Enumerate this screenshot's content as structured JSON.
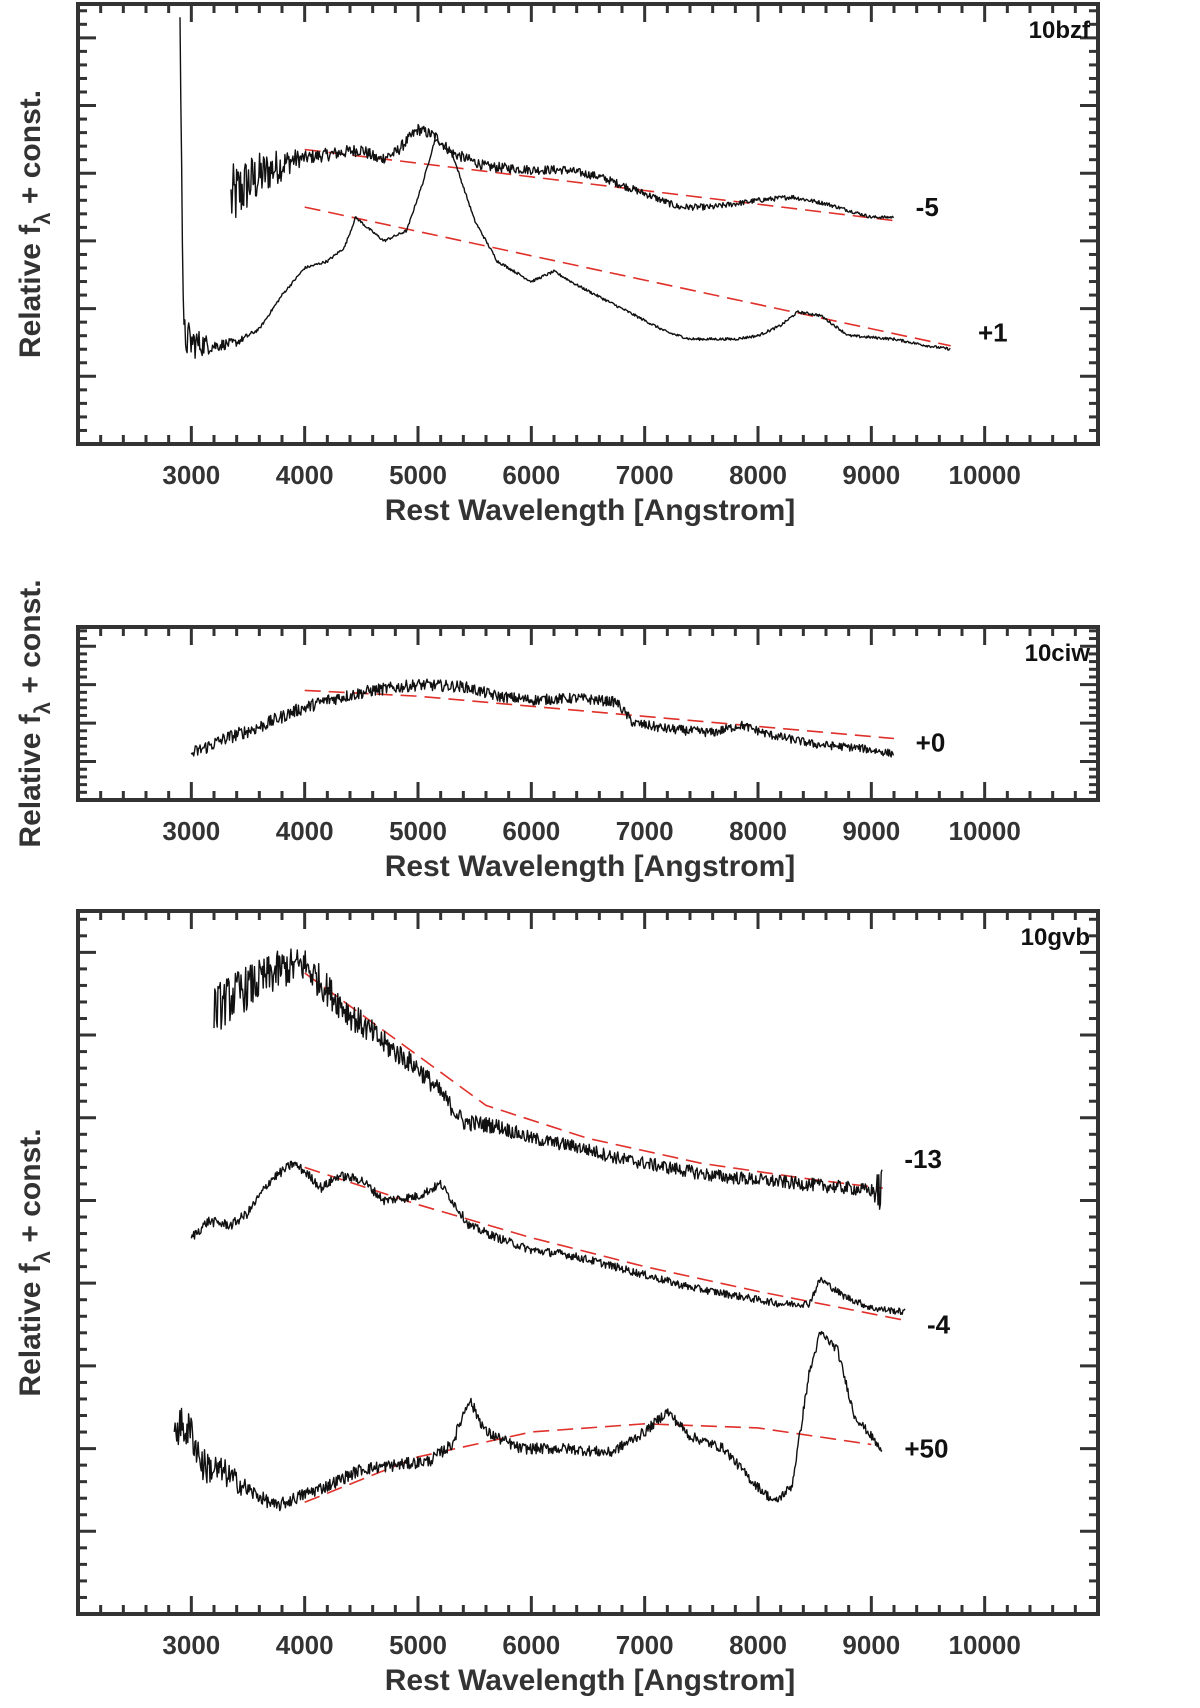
{
  "chart_data": [
    {
      "type": "line",
      "name": "10bzf",
      "title": "10bzf",
      "xlabel": "Rest Wavelength [Angstrom]",
      "ylabel": "Relative f_λ + const.",
      "ylabel_main": "Relative f",
      "ylabel_sub": "λ",
      "ylabel_tail": " + const.",
      "xlim": [
        2000,
        11000
      ],
      "xticks": [
        3000,
        4000,
        5000,
        6000,
        7000,
        8000,
        9000,
        10000
      ],
      "xtick_labels": [
        "3000",
        "4000",
        "5000",
        "6000",
        "7000",
        "8000",
        "9000",
        "10000"
      ],
      "ylim": [
        0,
        6.5
      ],
      "ymajor": [
        1,
        2,
        3,
        4,
        5,
        6
      ],
      "series": [
        {
          "name": "-5",
          "label": "-5",
          "label_anchor": [
            9250,
            3.5
          ],
          "noise": [
            [
              3300,
              0.55
            ],
            [
              3700,
              0.3
            ],
            [
              4000,
              0.1
            ],
            [
              9200,
              0.02
            ]
          ],
          "points": [
            [
              3350,
              3.6
            ],
            [
              3500,
              3.85
            ],
            [
              3700,
              4.05
            ],
            [
              3900,
              4.2
            ],
            [
              4100,
              4.25
            ],
            [
              4300,
              4.3
            ],
            [
              4500,
              4.35
            ],
            [
              4650,
              4.2
            ],
            [
              4800,
              4.3
            ],
            [
              5000,
              4.65
            ],
            [
              5150,
              4.55
            ],
            [
              5300,
              4.3
            ],
            [
              5600,
              4.1
            ],
            [
              6000,
              4.05
            ],
            [
              6300,
              4.05
            ],
            [
              6600,
              3.95
            ],
            [
              7000,
              3.7
            ],
            [
              7300,
              3.5
            ],
            [
              7600,
              3.5
            ],
            [
              8000,
              3.6
            ],
            [
              8300,
              3.65
            ],
            [
              8600,
              3.55
            ],
            [
              8800,
              3.45
            ],
            [
              9000,
              3.35
            ],
            [
              9200,
              3.35
            ]
          ]
        },
        {
          "name": "+1",
          "label": "+1",
          "label_anchor": [
            9800,
            1.65
          ],
          "noise": [
            [
              2950,
              0.3
            ],
            [
              3200,
              0.1
            ],
            [
              3600,
              0.02
            ],
            [
              9700,
              0.02
            ]
          ],
          "points": [
            [
              2900,
              6.5
            ],
            [
              2930,
              1.6
            ],
            [
              3000,
              1.5
            ],
            [
              3200,
              1.45
            ],
            [
              3400,
              1.5
            ],
            [
              3600,
              1.7
            ],
            [
              3800,
              2.2
            ],
            [
              4000,
              2.6
            ],
            [
              4200,
              2.7
            ],
            [
              4350,
              2.9
            ],
            [
              4450,
              3.35
            ],
            [
              4550,
              3.2
            ],
            [
              4700,
              3.0
            ],
            [
              4900,
              3.15
            ],
            [
              5050,
              3.9
            ],
            [
              5150,
              4.5
            ],
            [
              5300,
              4.3
            ],
            [
              5500,
              3.3
            ],
            [
              5700,
              2.7
            ],
            [
              6000,
              2.4
            ],
            [
              6200,
              2.55
            ],
            [
              6400,
              2.35
            ],
            [
              6800,
              2.0
            ],
            [
              7200,
              1.65
            ],
            [
              7400,
              1.55
            ],
            [
              7800,
              1.55
            ],
            [
              8000,
              1.6
            ],
            [
              8200,
              1.75
            ],
            [
              8350,
              1.95
            ],
            [
              8550,
              1.9
            ],
            [
              8800,
              1.6
            ],
            [
              9200,
              1.55
            ],
            [
              9500,
              1.45
            ],
            [
              9700,
              1.4
            ]
          ]
        }
      ],
      "fits": [
        {
          "name": "fit-10bzf--5",
          "points": [
            [
              4000,
              4.35
            ],
            [
              9200,
              3.3
            ]
          ]
        },
        {
          "name": "fit-10bzf-+1",
          "points": [
            [
              4000,
              3.5
            ],
            [
              9700,
              1.45
            ]
          ]
        }
      ]
    },
    {
      "type": "line",
      "name": "10ciw",
      "title": "10ciw",
      "xlabel": "Rest Wavelength [Angstrom]",
      "ylabel": "Relative f_λ + const.",
      "ylabel_main": "Relative f",
      "ylabel_sub": "λ",
      "ylabel_tail": " + const.",
      "xlim": [
        2000,
        11000
      ],
      "xticks": [
        3000,
        4000,
        5000,
        6000,
        7000,
        8000,
        9000,
        10000
      ],
      "xtick_labels": [
        "3000",
        "4000",
        "5000",
        "6000",
        "7000",
        "8000",
        "9000",
        "10000"
      ],
      "ylim": [
        0,
        4.5
      ],
      "ymajor": [
        1,
        2,
        3,
        4
      ],
      "series": [
        {
          "name": "+0",
          "label": "+0",
          "label_anchor": [
            9250,
            1.5
          ],
          "noise": [
            [
              3000,
              0.18
            ],
            [
              9200,
              0.1
            ]
          ],
          "points": [
            [
              3000,
              1.2
            ],
            [
              3300,
              1.6
            ],
            [
              3600,
              1.9
            ],
            [
              3900,
              2.3
            ],
            [
              4200,
              2.6
            ],
            [
              4600,
              2.85
            ],
            [
              5000,
              3.0
            ],
            [
              5400,
              2.95
            ],
            [
              5700,
              2.7
            ],
            [
              6000,
              2.6
            ],
            [
              6400,
              2.65
            ],
            [
              6750,
              2.55
            ],
            [
              6900,
              2.0
            ],
            [
              7200,
              1.85
            ],
            [
              7600,
              1.75
            ],
            [
              7850,
              1.95
            ],
            [
              8100,
              1.7
            ],
            [
              8500,
              1.45
            ],
            [
              8900,
              1.35
            ],
            [
              9200,
              1.2
            ]
          ]
        }
      ],
      "fits": [
        {
          "name": "fit-10ciw-+0",
          "points": [
            [
              4000,
              2.85
            ],
            [
              5000,
              2.7
            ],
            [
              9200,
              1.6
            ]
          ]
        }
      ]
    },
    {
      "type": "line",
      "name": "10gvb",
      "title": "10gvb",
      "xlabel": "Rest Wavelength [Angstrom]",
      "ylabel": "Relative f_λ + const.",
      "ylabel_main": "Relative f",
      "ylabel_sub": "λ",
      "ylabel_tail": " + const.",
      "xlim": [
        2000,
        11000
      ],
      "xticks": [
        3000,
        4000,
        5000,
        6000,
        7000,
        8000,
        9000,
        10000
      ],
      "xtick_labels": [
        "3000",
        "4000",
        "5000",
        "6000",
        "7000",
        "8000",
        "9000",
        "10000"
      ],
      "ylim": [
        0,
        8.5
      ],
      "ymajor": [
        1,
        2,
        3,
        4,
        5,
        6,
        7,
        8
      ],
      "series": [
        {
          "name": "-13",
          "label": "-13",
          "label_anchor": [
            9150,
            5.5
          ],
          "noise": [
            [
              3200,
              0.3
            ],
            [
              4000,
              0.22
            ],
            [
              5000,
              0.12
            ],
            [
              6000,
              0.08
            ],
            [
              9000,
              0.08
            ],
            [
              9100,
              0.35
            ]
          ],
          "points": [
            [
              3200,
              7.3
            ],
            [
              3400,
              7.5
            ],
            [
              3600,
              7.65
            ],
            [
              3800,
              7.8
            ],
            [
              4000,
              7.85
            ],
            [
              4200,
              7.55
            ],
            [
              4400,
              7.25
            ],
            [
              4700,
              6.9
            ],
            [
              5000,
              6.6
            ],
            [
              5200,
              6.3
            ],
            [
              5400,
              5.95
            ],
            [
              5700,
              5.9
            ],
            [
              6000,
              5.75
            ],
            [
              6400,
              5.65
            ],
            [
              6800,
              5.5
            ],
            [
              7200,
              5.4
            ],
            [
              7600,
              5.3
            ],
            [
              8000,
              5.25
            ],
            [
              8400,
              5.2
            ],
            [
              8800,
              5.15
            ],
            [
              9100,
              5.1
            ]
          ]
        },
        {
          "name": "-4",
          "label": "-4",
          "label_anchor": [
            9350,
            3.5
          ],
          "noise": [
            [
              3000,
              0.06
            ],
            [
              9300,
              0.04
            ]
          ],
          "points": [
            [
              3000,
              4.55
            ],
            [
              3150,
              4.75
            ],
            [
              3350,
              4.7
            ],
            [
              3500,
              4.85
            ],
            [
              3700,
              5.25
            ],
            [
              3900,
              5.45
            ],
            [
              4000,
              5.35
            ],
            [
              4150,
              5.15
            ],
            [
              4300,
              5.3
            ],
            [
              4500,
              5.25
            ],
            [
              4700,
              5.0
            ],
            [
              5000,
              5.05
            ],
            [
              5200,
              5.2
            ],
            [
              5450,
              4.7
            ],
            [
              5700,
              4.55
            ],
            [
              6000,
              4.4
            ],
            [
              6300,
              4.35
            ],
            [
              6600,
              4.25
            ],
            [
              7000,
              4.1
            ],
            [
              7400,
              3.95
            ],
            [
              7800,
              3.85
            ],
            [
              8200,
              3.75
            ],
            [
              8450,
              3.75
            ],
            [
              8550,
              4.05
            ],
            [
              8750,
              3.85
            ],
            [
              9000,
              3.7
            ],
            [
              9300,
              3.65
            ]
          ]
        },
        {
          "name": "+50",
          "label": "+50",
          "label_anchor": [
            9150,
            2.0
          ],
          "noise": [
            [
              2850,
              0.25
            ],
            [
              3200,
              0.2
            ],
            [
              3600,
              0.08
            ],
            [
              9100,
              0.05
            ]
          ],
          "points": [
            [
              2850,
              2.3
            ],
            [
              3000,
              2.2
            ],
            [
              3100,
              1.8
            ],
            [
              3300,
              1.7
            ],
            [
              3500,
              1.5
            ],
            [
              3750,
              1.3
            ],
            [
              4000,
              1.45
            ],
            [
              4200,
              1.55
            ],
            [
              4500,
              1.75
            ],
            [
              4800,
              1.8
            ],
            [
              5100,
              1.85
            ],
            [
              5300,
              2.05
            ],
            [
              5450,
              2.6
            ],
            [
              5600,
              2.2
            ],
            [
              5900,
              2.0
            ],
            [
              6300,
              2.0
            ],
            [
              6700,
              1.95
            ],
            [
              7000,
              2.2
            ],
            [
              7200,
              2.45
            ],
            [
              7400,
              2.15
            ],
            [
              7700,
              2.0
            ],
            [
              7950,
              1.6
            ],
            [
              8150,
              1.35
            ],
            [
              8300,
              1.55
            ],
            [
              8450,
              2.9
            ],
            [
              8550,
              3.4
            ],
            [
              8700,
              3.2
            ],
            [
              8850,
              2.4
            ],
            [
              9000,
              2.15
            ],
            [
              9100,
              1.95
            ]
          ]
        }
      ],
      "fits": [
        {
          "name": "fit-10gvb--13",
          "points": [
            [
              4000,
              7.75
            ],
            [
              5000,
              6.75
            ],
            [
              5600,
              6.15
            ],
            [
              6500,
              5.75
            ],
            [
              7500,
              5.45
            ],
            [
              8500,
              5.25
            ],
            [
              9100,
              5.15
            ]
          ]
        },
        {
          "name": "fit-10gvb--4",
          "points": [
            [
              4000,
              5.4
            ],
            [
              5000,
              4.95
            ],
            [
              6000,
              4.55
            ],
            [
              7000,
              4.2
            ],
            [
              8000,
              3.9
            ],
            [
              9300,
              3.55
            ]
          ]
        },
        {
          "name": "fit-10gvb-+50",
          "points": [
            [
              4000,
              1.35
            ],
            [
              5000,
              1.9
            ],
            [
              6000,
              2.2
            ],
            [
              7000,
              2.3
            ],
            [
              8000,
              2.25
            ],
            [
              9000,
              2.05
            ]
          ]
        }
      ]
    }
  ]
}
